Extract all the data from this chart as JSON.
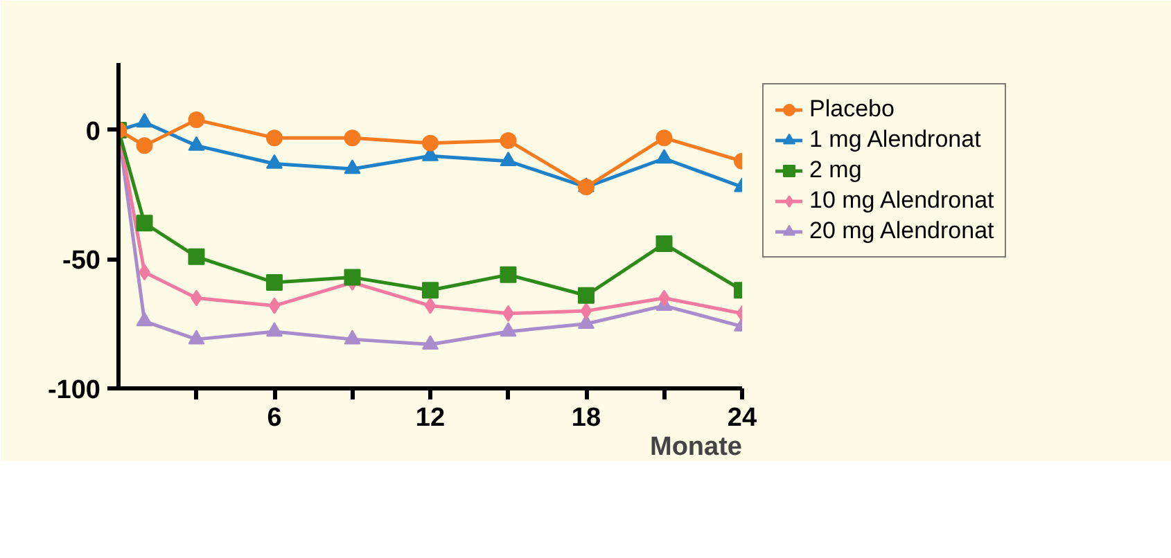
{
  "chart_data": {
    "type": "line",
    "xlabel": "Monate",
    "x": [
      0,
      1,
      3,
      6,
      9,
      12,
      15,
      18,
      21,
      24
    ],
    "series": [
      {
        "name": "Placebo",
        "color": "#f47b20",
        "marker": "circle",
        "values": [
          0,
          -6,
          4,
          -3,
          -3,
          -5,
          -4,
          -22,
          -3,
          -12
        ]
      },
      {
        "name": "1 mg Alendronat",
        "color": "#1f82c8",
        "marker": "triangle",
        "values": [
          0,
          3,
          -6,
          -13,
          -15,
          -10,
          -12,
          -22,
          -11,
          -22
        ]
      },
      {
        "name": "2 mg",
        "color": "#2e8b1a",
        "marker": "square",
        "values": [
          0,
          -36,
          -49,
          -59,
          -57,
          -62,
          -56,
          -64,
          -44,
          -62
        ]
      },
      {
        "name": "10 mg Alendronat",
        "color": "#f07aa0",
        "marker": "diamond",
        "values": [
          0,
          -55,
          -65,
          -68,
          -59,
          -68,
          -71,
          -70,
          -65,
          -71
        ]
      },
      {
        "name": "20 mg Alendronat",
        "color": "#a98ccc",
        "marker": "triangle",
        "values": [
          0,
          -74,
          -81,
          -78,
          -81,
          -83,
          -78,
          -75,
          -68,
          -76
        ]
      }
    ],
    "xlim": [
      0,
      24
    ],
    "ylim": [
      -100,
      26
    ],
    "xticks": [
      {
        "value": 3,
        "label": null
      },
      6,
      {
        "value": 9,
        "label": null
      },
      12,
      {
        "value": 15,
        "label": null
      },
      18,
      {
        "value": 21,
        "label": null
      },
      24
    ],
    "yticks": [
      -100,
      -50,
      0
    ],
    "grid": false,
    "legend": "top right",
    "line_style": "solid"
  }
}
